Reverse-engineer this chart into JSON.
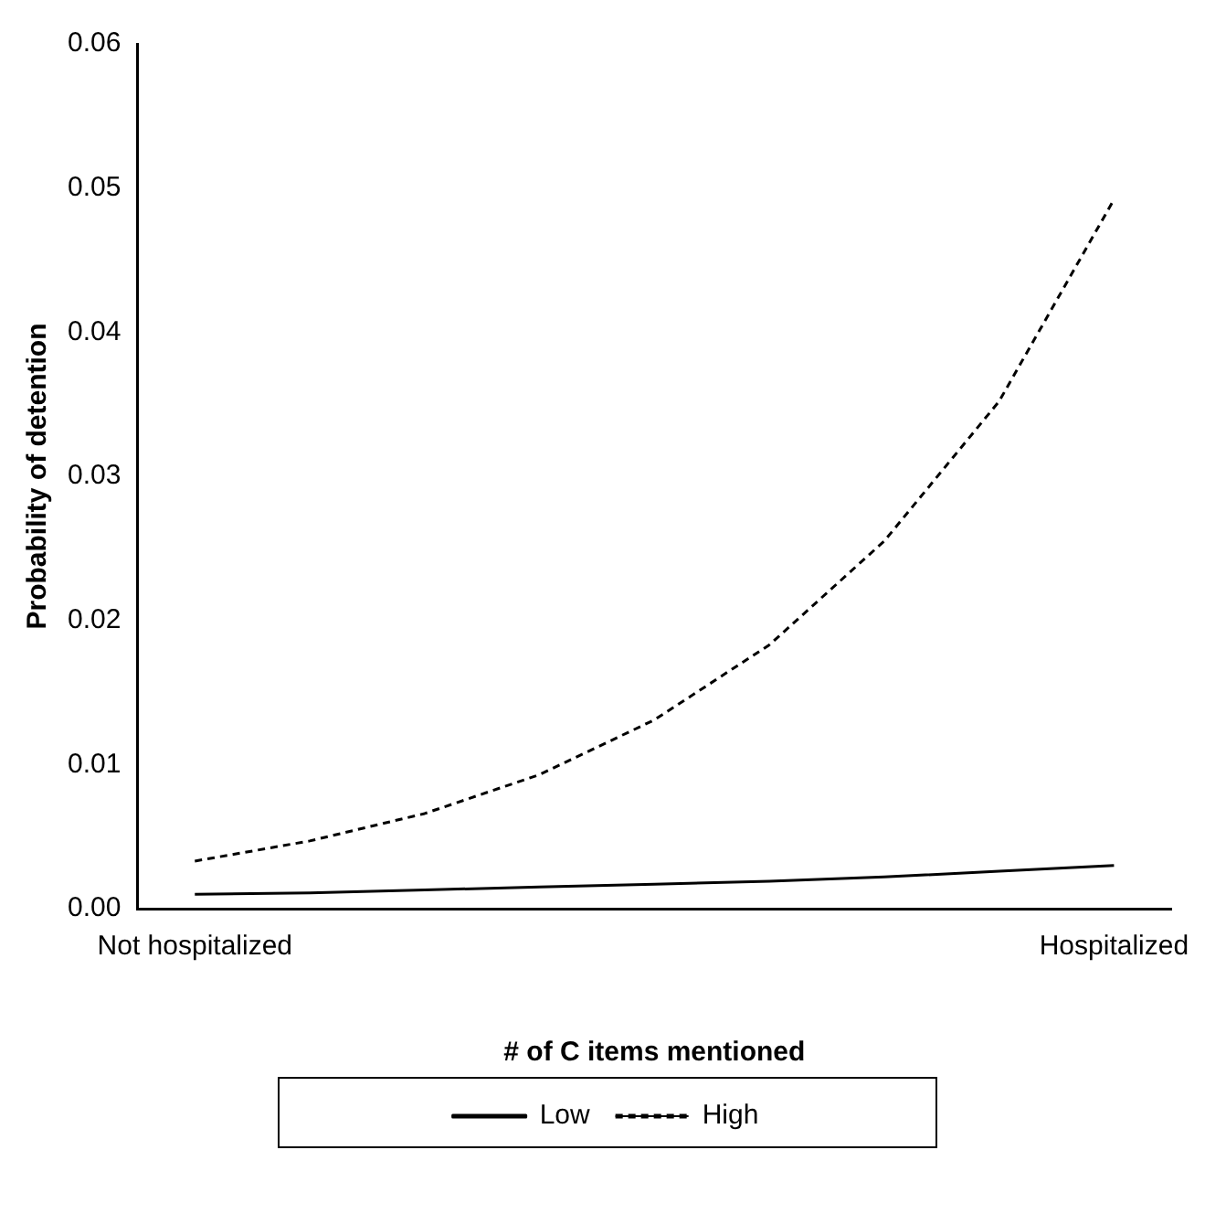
{
  "chart_data": {
    "type": "line",
    "xlabel": "# of C items mentioned",
    "ylabel": "Probability of detention",
    "categories": [
      "Not hospitalized",
      null,
      null,
      null,
      null,
      null,
      null,
      null,
      "Hospitalized"
    ],
    "series": [
      {
        "name": "Low",
        "color": "#000000",
        "line_style": "solid",
        "values": [
          0.001,
          0.0011,
          0.0013,
          0.0015,
          0.0017,
          0.0019,
          0.0022,
          0.0026,
          0.003
        ]
      },
      {
        "name": "High",
        "color": "#000000",
        "line_style": "dashed",
        "values": [
          0.0033,
          0.0047,
          0.0066,
          0.0093,
          0.0131,
          0.0183,
          0.0255,
          0.0352,
          0.0492
        ]
      }
    ],
    "ylim": [
      0,
      0.06
    ],
    "yticks": [
      {
        "value": 0,
        "label": "0.00"
      },
      {
        "value": 0.01,
        "label": "0.01"
      },
      {
        "value": 0.02,
        "label": "0.02"
      },
      {
        "value": 0.03,
        "label": "0.03"
      },
      {
        "value": 0.04,
        "label": "0.04"
      },
      {
        "value": 0.05,
        "label": "0.05"
      },
      {
        "value": 0.06,
        "label": "0.06"
      }
    ],
    "grid": false,
    "legend": "bottom",
    "marker": "none"
  }
}
